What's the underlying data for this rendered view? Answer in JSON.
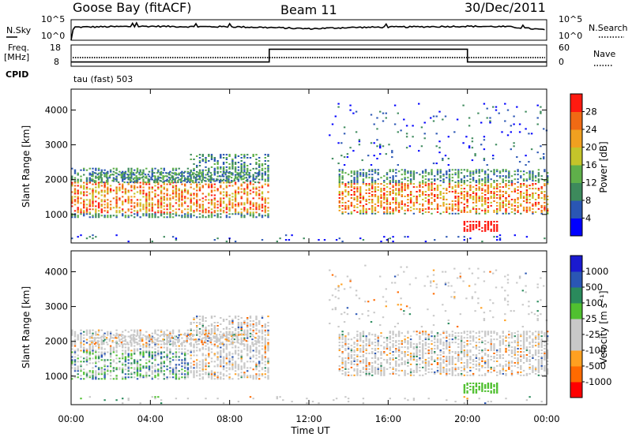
{
  "header": {
    "station": "Goose Bay (fitACF)",
    "beam": "Beam 11",
    "date": "30/Dec/2011"
  },
  "noise_panel": {
    "left_label": "N.Sky",
    "left_ticks": [
      "10^5",
      "10^0"
    ],
    "right_label": "N.Search",
    "right_ticks": [
      "10^5",
      "10^0"
    ]
  },
  "freq_panel": {
    "left_label_line1": "Freq.",
    "left_label_line2": "[MHz]",
    "left_ticks": [
      "18",
      "8"
    ],
    "right_label": "Nave",
    "right_ticks": [
      "60",
      "0"
    ],
    "cpid_label": "CPID",
    "cpid_value": "tau (fast) 503"
  },
  "colors": {
    "power_scale": [
      "#0000ff",
      "#2a56b4",
      "#3d8a5c",
      "#5fb04a",
      "#c4c42a",
      "#f0a020",
      "#f06a14",
      "#ff1a10"
    ],
    "velocity_scale": [
      "#ff0000",
      "#ff6a00",
      "#ffa020",
      "#c8c8c8",
      "#c8c8c8",
      "#50c030",
      "#2a8a5c",
      "#2a56b4",
      "#1a1ad0"
    ]
  },
  "chart_data": [
    {
      "type": "line",
      "name": "noise-levels",
      "x_range": [
        "00:00",
        "24:00"
      ],
      "series": [
        {
          "values_at_hours": [
            0,
            0.1,
            0.2,
            2,
            4,
            6,
            8,
            10,
            12,
            14,
            16,
            18,
            20,
            22,
            24
          ],
          "values": [
            0,
            2.6,
            3.2,
            3.3,
            3.4,
            3.3,
            3.3,
            3.1,
            2.8,
            3.1,
            3.2,
            3.3,
            3.4,
            3.3,
            2.5
          ]
        }
      ],
      "ylim_log10": [
        0,
        5
      ]
    },
    {
      "type": "line",
      "name": "frequency-nave",
      "x_range": [
        "00:00",
        "24:00"
      ],
      "series": [
        {
          "values_at_hours": [
            0,
            10,
            10,
            20,
            20,
            24
          ],
          "values": [
            10,
            10,
            16,
            16,
            10,
            10
          ]
        }
      ],
      "ylim": [
        8,
        18
      ]
    },
    {
      "type": "heatmap",
      "name": "power",
      "ylabel": "Slant Range [km]",
      "x_ticks": [
        "00:00",
        "04:00",
        "08:00",
        "12:00",
        "16:00",
        "20:00",
        "00:00"
      ],
      "y_ticks": [
        1000,
        2000,
        3000,
        4000
      ],
      "ylim": [
        180,
        4600
      ],
      "colorbar_label": "Power [dB]",
      "colorbar_ticks": [
        4,
        8,
        12,
        16,
        20,
        24,
        28
      ],
      "clim": [
        0,
        32
      ]
    },
    {
      "type": "heatmap",
      "name": "velocity",
      "ylabel": "Slant Range [km]",
      "xlabel": "Time UT",
      "x_ticks": [
        "00:00",
        "04:00",
        "08:00",
        "12:00",
        "16:00",
        "20:00",
        "00:00"
      ],
      "y_ticks": [
        1000,
        2000,
        3000,
        4000
      ],
      "ylim": [
        180,
        4600
      ],
      "colorbar_label": "Velocity [m s⁻¹]",
      "colorbar_ticks": [
        1000,
        500,
        100,
        25,
        -25,
        -100,
        -500,
        -1000
      ]
    }
  ]
}
